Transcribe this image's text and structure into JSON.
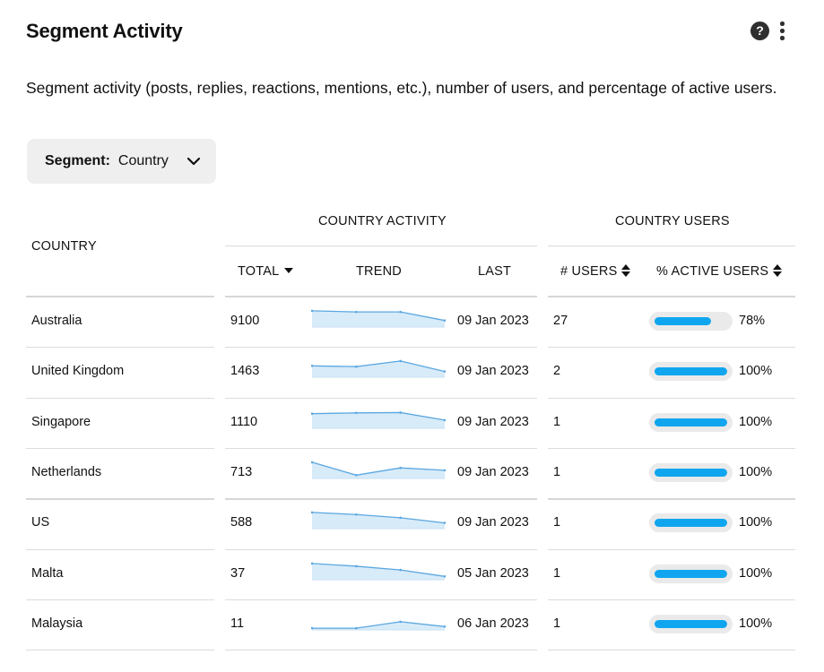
{
  "header": {
    "title": "Segment Activity",
    "help_glyph": "?",
    "help_icon": "question-circle-icon",
    "more_icon": "vertical-dots-icon"
  },
  "description": "Segment activity (posts, replies, reactions, mentions, etc.), number of users, and percentage of active users.",
  "segment": {
    "label": "Segment:",
    "value": "Country"
  },
  "table": {
    "group_activity": "COUNTRY ACTIVITY",
    "group_users": "COUNTRY USERS",
    "columns": {
      "country": "COUNTRY",
      "total": "TOTAL",
      "trend": "TREND",
      "last": "LAST",
      "users": "# USERS",
      "active": "% ACTIVE USERS"
    },
    "rows": [
      {
        "country": "Australia",
        "total": "9100",
        "last": "09 Jan 2023",
        "users": "27",
        "active": "78%",
        "active_value": 78,
        "trend": [
          0.95,
          0.88,
          0.88,
          0.35
        ]
      },
      {
        "country": "United Kingdom",
        "total": "1463",
        "last": "09 Jan 2023",
        "users": "2",
        "active": "100%",
        "active_value": 100,
        "trend": [
          0.65,
          0.6,
          0.95,
          0.3
        ]
      },
      {
        "country": "Singapore",
        "total": "1110",
        "last": "09 Jan 2023",
        "users": "1",
        "active": "100%",
        "active_value": 100,
        "trend": [
          0.85,
          0.9,
          0.92,
          0.45
        ]
      },
      {
        "country": "Netherlands",
        "total": "713",
        "last": "09 Jan 2023",
        "users": "1",
        "active": "100%",
        "active_value": 100,
        "trend": [
          0.95,
          0.15,
          0.6,
          0.45
        ]
      },
      {
        "country": "US",
        "total": "588",
        "last": "09 Jan 2023",
        "users": "1",
        "active": "100%",
        "active_value": 100,
        "trend": [
          0.95,
          0.82,
          0.62,
          0.3
        ]
      },
      {
        "country": "Malta",
        "total": "37",
        "last": "05 Jan 2023",
        "users": "1",
        "active": "100%",
        "active_value": 100,
        "trend": [
          0.95,
          0.78,
          0.55,
          0.15
        ]
      },
      {
        "country": "Malaysia",
        "total": "11",
        "last": "06 Jan 2023",
        "users": "1",
        "active": "100%",
        "active_value": 100,
        "trend": [
          0.05,
          0.05,
          0.45,
          0.15
        ]
      }
    ]
  },
  "colors": {
    "bar_fill": "#10a6ef",
    "bar_track": "#eaeaea",
    "trend_line": "#5aa7e0",
    "trend_fill": "#d8ebf9"
  }
}
